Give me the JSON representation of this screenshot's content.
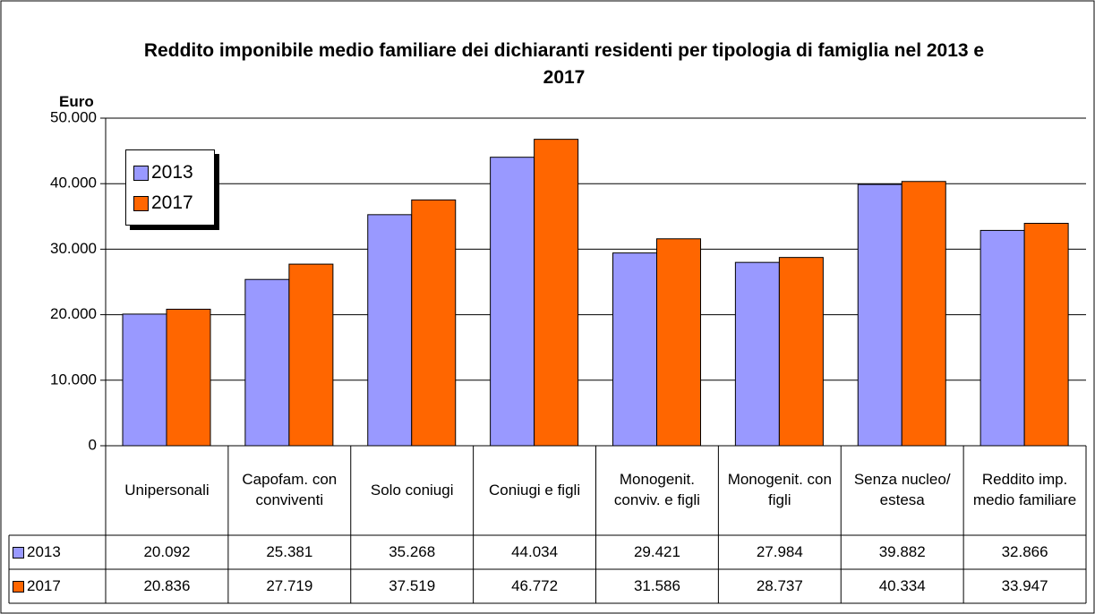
{
  "chart_data": {
    "type": "bar",
    "title": "Reddito imponibile medio familiare dei dichiaranti residenti per tipologia di famiglia nel 2013 e 2017",
    "y_label": "Euro",
    "categories": [
      "Unipersonali",
      "Capofam. con conviventi",
      "Solo coniugi",
      "Coniugi e figli",
      "Monogenit. conviv. e figli",
      "Monogenit. con figli",
      "Senza nucleo/ estesa",
      "Reddito imp. medio familiare"
    ],
    "series": [
      {
        "name": "2013",
        "color": "#9999ff",
        "values": [
          20092,
          25381,
          35268,
          44034,
          29421,
          27984,
          39882,
          32866
        ],
        "value_labels": [
          "20.092",
          "25.381",
          "35.268",
          "44.034",
          "29.421",
          "27.984",
          "39.882",
          "32.866"
        ]
      },
      {
        "name": "2017",
        "color": "#ff6600",
        "values": [
          20836,
          27719,
          37519,
          46772,
          31586,
          28737,
          40334,
          33947
        ],
        "value_labels": [
          "20.836",
          "27.719",
          "37.519",
          "46.772",
          "31.586",
          "28.737",
          "40.334",
          "33.947"
        ]
      }
    ],
    "ylim": [
      0,
      50000
    ],
    "yticks": [
      0,
      {
        "value": 10000,
        "label": "10.000"
      },
      {
        "value": 20000,
        "label": "20.000"
      },
      {
        "value": 30000,
        "label": "30.000"
      },
      {
        "value": 40000,
        "label": "40.000"
      },
      {
        "value": 50000,
        "label": "50.000"
      }
    ],
    "grid": true,
    "legend": "upper left"
  }
}
